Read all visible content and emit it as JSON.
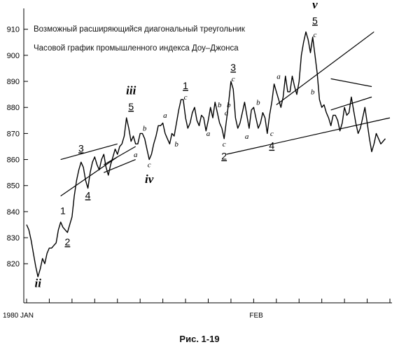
{
  "caption": "Рис. 1-19",
  "chart_data": {
    "type": "line",
    "title": "Возможный расширяющийся диагональный треугольник",
    "subtitle": "Часовой график промышленного индекса Доу–Джонса",
    "xlabel": "",
    "ylabel": "",
    "x_tick_labels": [
      {
        "text": "1980 JAN",
        "x": 0
      },
      {
        "text": "FEB",
        "x": 100
      }
    ],
    "ylim": [
      805,
      918
    ],
    "xlim": [
      0,
      160
    ],
    "yticks": [
      820,
      830,
      840,
      850,
      860,
      870,
      880,
      890,
      900,
      910
    ],
    "grid": false,
    "series": [
      {
        "x": [
          0,
          1,
          2,
          3,
          4,
          5,
          6,
          7,
          8,
          9,
          10,
          11,
          12,
          13,
          14,
          15,
          16,
          17,
          18,
          19,
          20,
          21,
          22,
          23,
          24,
          25,
          26,
          27,
          28,
          29,
          30,
          31,
          32,
          33,
          34,
          35,
          36,
          37,
          38,
          39,
          40,
          41,
          42,
          43,
          44,
          45,
          46,
          47,
          48,
          49,
          50,
          51,
          52,
          53,
          54,
          55,
          56,
          57,
          58,
          59,
          60,
          61,
          62,
          63,
          64,
          65,
          66,
          67,
          68,
          69,
          70,
          71,
          72,
          73,
          74,
          75,
          76,
          77,
          78,
          79,
          80,
          81,
          82,
          83,
          84,
          85,
          86,
          87,
          88,
          89,
          90,
          91,
          92,
          93,
          94,
          95,
          96,
          97,
          98,
          99,
          100,
          101,
          102,
          103,
          104,
          105,
          106,
          107,
          108,
          109,
          110,
          111,
          112,
          113,
          114,
          115,
          116,
          117,
          118,
          119,
          120,
          121,
          122,
          123,
          124,
          125,
          126,
          127,
          128,
          129,
          130,
          131,
          132,
          133,
          134,
          135,
          136,
          137,
          138,
          139,
          140,
          141,
          142,
          143,
          144,
          145,
          146,
          147,
          148,
          149,
          150,
          151,
          152,
          153,
          154,
          155,
          156,
          157,
          158
        ],
        "values": [
          835,
          833,
          829,
          824,
          819,
          815,
          818,
          822,
          820,
          824,
          826,
          826,
          827,
          828,
          833,
          836,
          834,
          833,
          832,
          835,
          838,
          846,
          852,
          856,
          859,
          857,
          852,
          849,
          855,
          859,
          861,
          858,
          856,
          860,
          862,
          857,
          854,
          858,
          861,
          864,
          862,
          865,
          866,
          869,
          876,
          872,
          867,
          869,
          866,
          866,
          870,
          870,
          868,
          864,
          860,
          862,
          866,
          869,
          873,
          873,
          874,
          870,
          868,
          866,
          870,
          869,
          874,
          879,
          883,
          883,
          876,
          872,
          874,
          878,
          880,
          875,
          873,
          877,
          876,
          871,
          875,
          880,
          876,
          882,
          878,
          874,
          872,
          868,
          875,
          882,
          890,
          887,
          876,
          872,
          874,
          878,
          882,
          877,
          872,
          879,
          880,
          876,
          872,
          874,
          878,
          876,
          870,
          877,
          882,
          889,
          886,
          883,
          880,
          884,
          892,
          886,
          886,
          892,
          888,
          885,
          890,
          900,
          905,
          909,
          906,
          901,
          907,
          900,
          893,
          883,
          880,
          881,
          878,
          876,
          873,
          877,
          877,
          875,
          871,
          874,
          880,
          877,
          878,
          884,
          879,
          874,
          870,
          872,
          876,
          880,
          874,
          868,
          863,
          866,
          870,
          868,
          866,
          867,
          868
        ]
      }
    ],
    "trendlines": [
      {
        "from": [
          110.0,
          881.0
        ],
        "to": [
          153.0,
          909.0
        ]
      },
      {
        "from": [
          88.0,
          862.0
        ],
        "to": [
          160.0,
          876.0
        ]
      },
      {
        "from": [
          134.0,
          891.0
        ],
        "to": [
          152.0,
          888.0
        ]
      },
      {
        "from": [
          134.0,
          879.0
        ],
        "to": [
          152.0,
          884.0
        ]
      },
      {
        "from": [
          34.0,
          858.0
        ],
        "to": [
          48.0,
          865.0
        ]
      },
      {
        "from": [
          34.0,
          855.0
        ],
        "to": [
          48.0,
          860.0
        ]
      },
      {
        "from": [
          15.0,
          860.0
        ],
        "to": [
          40.0,
          866.0
        ]
      },
      {
        "from": [
          15.0,
          846.0
        ],
        "to": [
          40.0,
          861.0
        ]
      }
    ],
    "annotations": [
      {
        "text": "ii",
        "x": 5,
        "y": 811,
        "style": "roman"
      },
      {
        "text": "1",
        "x": 16,
        "y": 839,
        "style": "num"
      },
      {
        "text": "2",
        "x": 18,
        "y": 827,
        "style": "num-under"
      },
      {
        "text": "3",
        "x": 24,
        "y": 863,
        "style": "num-under"
      },
      {
        "text": "4",
        "x": 27,
        "y": 845,
        "style": "num-under"
      },
      {
        "text": "iii",
        "x": 46,
        "y": 885,
        "style": "roman"
      },
      {
        "text": "5",
        "x": 46,
        "y": 879,
        "style": "num-under"
      },
      {
        "text": "a",
        "x": 48,
        "y": 861,
        "style": "letter"
      },
      {
        "text": "b",
        "x": 52,
        "y": 871,
        "style": "letter"
      },
      {
        "text": "c",
        "x": 54,
        "y": 857,
        "style": "letter"
      },
      {
        "text": "iv",
        "x": 54,
        "y": 851,
        "style": "roman"
      },
      {
        "text": "a",
        "x": 61,
        "y": 876,
        "style": "letter"
      },
      {
        "text": "b",
        "x": 66,
        "y": 865,
        "style": "letter"
      },
      {
        "text": "1",
        "x": 70,
        "y": 887,
        "style": "num-under"
      },
      {
        "text": "c",
        "x": 70,
        "y": 883,
        "style": "letter"
      },
      {
        "text": "a",
        "x": 80,
        "y": 869,
        "style": "letter"
      },
      {
        "text": "b",
        "x": 85,
        "y": 880,
        "style": "letter"
      },
      {
        "text": "a",
        "x": 88,
        "y": 877,
        "style": "letter"
      },
      {
        "text": "b",
        "x": 89,
        "y": 880,
        "style": "letter"
      },
      {
        "text": "c",
        "x": 87,
        "y": 865,
        "style": "letter"
      },
      {
        "text": "2",
        "x": 87,
        "y": 860,
        "style": "num-under"
      },
      {
        "text": "3",
        "x": 91,
        "y": 894,
        "style": "num-under"
      },
      {
        "text": "c",
        "x": 91,
        "y": 890,
        "style": "letter"
      },
      {
        "text": "b",
        "x": 102,
        "y": 881,
        "style": "letter"
      },
      {
        "text": "a",
        "x": 97,
        "y": 868,
        "style": "letter"
      },
      {
        "text": "c",
        "x": 108,
        "y": 869,
        "style": "letter"
      },
      {
        "text": "4",
        "x": 108,
        "y": 864,
        "style": "num-under"
      },
      {
        "text": "a",
        "x": 111,
        "y": 891,
        "style": "letter"
      },
      {
        "text": "b",
        "x": 126,
        "y": 885,
        "style": "letter"
      },
      {
        "text": "v",
        "x": 127,
        "y": 918,
        "style": "roman"
      },
      {
        "text": "5",
        "x": 127,
        "y": 912,
        "style": "num-under"
      },
      {
        "text": "c",
        "x": 127,
        "y": 907,
        "style": "letter"
      }
    ]
  }
}
